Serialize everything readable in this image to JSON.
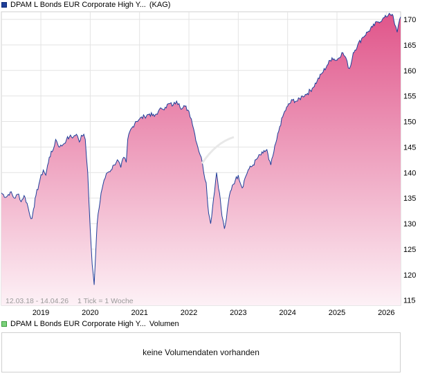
{
  "price_legend": {
    "name": "DPAM L Bonds EUR Corporate High Y...",
    "tag": "(KAG)",
    "color": "#1f3f9a"
  },
  "volume_legend": {
    "name": "DPAM L Bonds EUR Corporate High Y...",
    "tag": "Volumen",
    "color": "#7bd17b"
  },
  "volume_panel": {
    "message": "keine Volumendaten vorhanden"
  },
  "chart_info": {
    "range": "12.03.18 - 14.04.26",
    "tick": "1 Tick = 1 Woche"
  },
  "chart_data": {
    "type": "area",
    "title": "",
    "xlabel": "",
    "ylabel": "",
    "x_ticks": [
      "2019",
      "2020",
      "2021",
      "2022",
      "2023",
      "2024",
      "2025",
      "2026"
    ],
    "y_ticks": [
      115,
      120,
      125,
      130,
      135,
      140,
      145,
      150,
      155,
      160,
      165,
      170
    ],
    "ylim": [
      114,
      171.5
    ],
    "xlim": [
      2018.2,
      2026.29
    ],
    "grid": true,
    "line_color": "#1f3f9a",
    "fill_top_color": "#e0558a",
    "fill_bottom_color": "#fdf1f6",
    "series": [
      {
        "points": [
          [
            2018.2,
            136.0
          ],
          [
            2018.3,
            135.2
          ],
          [
            2018.38,
            136.2
          ],
          [
            2018.46,
            135.0
          ],
          [
            2018.55,
            135.8
          ],
          [
            2018.6,
            134.3
          ],
          [
            2018.66,
            135.5
          ],
          [
            2018.72,
            134.0
          ],
          [
            2018.78,
            131.5
          ],
          [
            2018.82,
            131.0
          ],
          [
            2018.85,
            132.8
          ],
          [
            2018.9,
            135.5
          ],
          [
            2018.98,
            138.5
          ],
          [
            2019.05,
            140.5
          ],
          [
            2019.1,
            139.5
          ],
          [
            2019.17,
            143.0
          ],
          [
            2019.25,
            144.5
          ],
          [
            2019.3,
            146.5
          ],
          [
            2019.38,
            145.0
          ],
          [
            2019.45,
            145.5
          ],
          [
            2019.52,
            146.5
          ],
          [
            2019.58,
            147.0
          ],
          [
            2019.66,
            147.0
          ],
          [
            2019.72,
            147.5
          ],
          [
            2019.78,
            146.0
          ],
          [
            2019.82,
            147.3
          ],
          [
            2019.87,
            147.5
          ],
          [
            2019.9,
            146.5
          ],
          [
            2019.95,
            140.0
          ],
          [
            2020.0,
            129.0
          ],
          [
            2020.04,
            122.0
          ],
          [
            2020.08,
            118.0
          ],
          [
            2020.11,
            124.0
          ],
          [
            2020.14,
            130.0
          ],
          [
            2020.18,
            133.0
          ],
          [
            2020.22,
            136.0
          ],
          [
            2020.28,
            138.5
          ],
          [
            2020.35,
            140.0
          ],
          [
            2020.42,
            140.5
          ],
          [
            2020.48,
            141.5
          ],
          [
            2020.55,
            142.5
          ],
          [
            2020.62,
            141.0
          ],
          [
            2020.68,
            143.0
          ],
          [
            2020.73,
            142.0
          ],
          [
            2020.76,
            146.5
          ],
          [
            2020.8,
            148.0
          ],
          [
            2020.86,
            149.0
          ],
          [
            2020.92,
            150.0
          ],
          [
            2021.0,
            150.5
          ],
          [
            2021.1,
            151.0
          ],
          [
            2021.2,
            151.5
          ],
          [
            2021.3,
            151.0
          ],
          [
            2021.38,
            152.0
          ],
          [
            2021.45,
            152.5
          ],
          [
            2021.52,
            152.8
          ],
          [
            2021.6,
            153.5
          ],
          [
            2021.68,
            153.2
          ],
          [
            2021.75,
            154.0
          ],
          [
            2021.8,
            153.5
          ],
          [
            2021.86,
            152.5
          ],
          [
            2021.92,
            153.0
          ],
          [
            2022.0,
            152.0
          ],
          [
            2022.05,
            150.5
          ],
          [
            2022.12,
            147.5
          ],
          [
            2022.18,
            145.0
          ],
          [
            2022.25,
            143.0
          ],
          [
            2022.3,
            140.0
          ],
          [
            2022.35,
            138.0
          ],
          [
            2022.4,
            132.0
          ],
          [
            2022.44,
            130.0
          ],
          [
            2022.5,
            135.0
          ],
          [
            2022.56,
            140.0
          ],
          [
            2022.62,
            136.0
          ],
          [
            2022.67,
            131.5
          ],
          [
            2022.72,
            129.0
          ],
          [
            2022.76,
            131.0
          ],
          [
            2022.82,
            135.5
          ],
          [
            2022.88,
            137.5
          ],
          [
            2022.94,
            138.5
          ],
          [
            2023.0,
            139.5
          ],
          [
            2023.08,
            137.0
          ],
          [
            2023.14,
            139.0
          ],
          [
            2023.2,
            140.5
          ],
          [
            2023.3,
            141.5
          ],
          [
            2023.4,
            143.0
          ],
          [
            2023.5,
            143.8
          ],
          [
            2023.58,
            144.5
          ],
          [
            2023.62,
            142.5
          ],
          [
            2023.66,
            141.5
          ],
          [
            2023.72,
            144.0
          ],
          [
            2023.78,
            146.5
          ],
          [
            2023.84,
            149.0
          ],
          [
            2023.92,
            151.5
          ],
          [
            2024.0,
            153.0
          ],
          [
            2024.1,
            154.2
          ],
          [
            2024.2,
            154.0
          ],
          [
            2024.3,
            155.0
          ],
          [
            2024.4,
            155.5
          ],
          [
            2024.5,
            156.5
          ],
          [
            2024.6,
            158.0
          ],
          [
            2024.7,
            159.5
          ],
          [
            2024.8,
            161.0
          ],
          [
            2024.9,
            162.5
          ],
          [
            2025.0,
            162.0
          ],
          [
            2025.1,
            163.5
          ],
          [
            2025.18,
            162.5
          ],
          [
            2025.23,
            160.5
          ],
          [
            2025.28,
            161.0
          ],
          [
            2025.33,
            163.5
          ],
          [
            2025.42,
            165.0
          ],
          [
            2025.52,
            166.5
          ],
          [
            2025.62,
            167.5
          ],
          [
            2025.72,
            168.5
          ],
          [
            2025.82,
            169.5
          ],
          [
            2025.92,
            170.0
          ],
          [
            2026.0,
            170.5
          ],
          [
            2026.06,
            171.2
          ],
          [
            2026.12,
            171.0
          ],
          [
            2026.17,
            169.0
          ],
          [
            2026.22,
            167.5
          ],
          [
            2026.27,
            170.0
          ],
          [
            2026.29,
            170.5
          ]
        ]
      }
    ]
  }
}
